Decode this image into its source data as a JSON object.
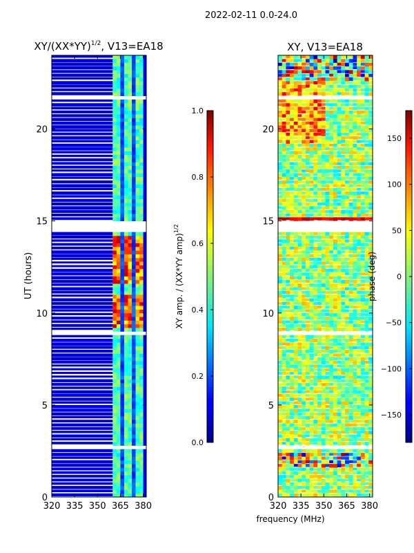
{
  "figure": {
    "suptitle": "2022-02-11 0.0-24.0",
    "xlabel_shared": "frequency (MHz)"
  },
  "chart_data": [
    {
      "type": "heatmap",
      "title_main": "XY/(XX*YY)",
      "title_sup": "1/2",
      "title_tail": ", V13=EA18",
      "ylabel": "UT (hours)",
      "xlim": [
        320,
        382
      ],
      "ylim": [
        0,
        24
      ],
      "xticks": [
        320,
        335,
        350,
        365,
        380
      ],
      "yticks": [
        0,
        5,
        10,
        15,
        20
      ],
      "colorbar": {
        "label_main": "XY amp. / (XX*YY amp)",
        "label_sup": "1/2",
        "range": [
          0.0,
          1.0
        ],
        "ticks": [
          "0.0",
          "0.2",
          "0.4",
          "0.6",
          "0.8",
          "1.0"
        ],
        "colormap": "jet"
      },
      "data_band_mhz": [
        360,
        380
      ],
      "typical_value_range": [
        0.0,
        0.9
      ]
    },
    {
      "type": "heatmap",
      "title": "XY, V13=EA18",
      "ylabel": "",
      "xlim": [
        320,
        382
      ],
      "ylim": [
        0,
        24
      ],
      "xticks": [
        320,
        335,
        350,
        365,
        380
      ],
      "yticks": [
        0,
        5,
        10,
        15,
        20
      ],
      "colorbar": {
        "label": "phase (deg)",
        "range": [
          -180,
          180
        ],
        "ticks": [
          "150",
          "100",
          "50",
          "0",
          "−50",
          "−100",
          "−150"
        ],
        "colormap": "jet"
      },
      "typical_value_range": [
        -180,
        180
      ]
    }
  ]
}
